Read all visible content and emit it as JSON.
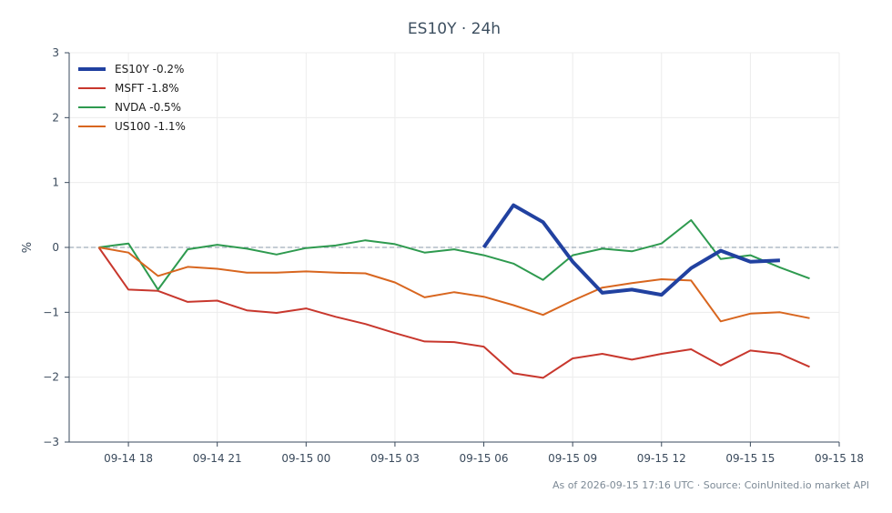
{
  "chart_data": {
    "type": "line",
    "title": "ES10Y · 24h",
    "xlabel": "",
    "ylabel": "%",
    "ylim": [
      -3,
      3
    ],
    "yticks": [
      -3,
      -2,
      -1,
      0,
      1,
      2,
      3
    ],
    "ytick_labels": [
      "−3",
      "−2",
      "−1",
      "0",
      "1",
      "2",
      "3"
    ],
    "xlim": [
      "09-14 16:00",
      "09-15 18:00"
    ],
    "xticks": [
      "09-14 18:00",
      "09-14 21:00",
      "09-15 00:00",
      "09-15 03:00",
      "09-15 06:00",
      "09-15 09:00",
      "09-15 12:00",
      "09-15 15:00",
      "09-15 18:00"
    ],
    "xtick_labels": [
      "09-14 18",
      "09-14 21",
      "09-15 00",
      "09-15 03",
      "09-15 06",
      "09-15 09",
      "09-15 12",
      "09-15 15",
      "09-15 18"
    ],
    "grid": true,
    "zero_line": true,
    "legend_position": "top-left",
    "series": [
      {
        "name": "ES10Y -0.2%",
        "color": "#2141a0",
        "width": "thick",
        "x": [
          "09-15 06:00",
          "09-15 07:00",
          "09-15 08:00",
          "09-15 09:00",
          "09-15 10:00",
          "09-15 11:00",
          "09-15 12:00",
          "09-15 13:00",
          "09-15 14:00",
          "09-15 15:00",
          "09-15 16:00"
        ],
        "values": [
          0.0,
          0.65,
          0.39,
          -0.22,
          -0.7,
          -0.65,
          -0.73,
          -0.32,
          -0.05,
          -0.22,
          -0.2
        ]
      },
      {
        "name": "MSFT -1.8%",
        "color": "#c8372d",
        "width": "normal",
        "x": [
          "09-14 17:00",
          "09-14 18:00",
          "09-14 19:00",
          "09-14 20:00",
          "09-14 21:00",
          "09-14 22:00",
          "09-14 23:00",
          "09-15 00:00",
          "09-15 01:00",
          "09-15 02:00",
          "09-15 03:00",
          "09-15 04:00",
          "09-15 05:00",
          "09-15 06:00",
          "09-15 07:00",
          "09-15 08:00",
          "09-15 09:00",
          "09-15 10:00",
          "09-15 11:00",
          "09-15 12:00",
          "09-15 13:00",
          "09-15 14:00",
          "09-15 15:00",
          "09-15 16:00",
          "09-15 17:00"
        ],
        "values": [
          0.0,
          -0.65,
          -0.67,
          -0.84,
          -0.82,
          -0.97,
          -1.01,
          -0.94,
          -1.07,
          -1.18,
          -1.32,
          -1.45,
          -1.46,
          -1.53,
          -1.94,
          -2.01,
          -1.71,
          -1.64,
          -1.73,
          -1.64,
          -1.57,
          -1.82,
          -1.59,
          -1.64,
          -1.84
        ]
      },
      {
        "name": "NVDA -0.5%",
        "color": "#2e9a4f",
        "width": "normal",
        "x": [
          "09-14 17:00",
          "09-14 18:00",
          "09-14 19:00",
          "09-14 20:00",
          "09-14 21:00",
          "09-14 22:00",
          "09-14 23:00",
          "09-15 00:00",
          "09-15 01:00",
          "09-15 02:00",
          "09-15 03:00",
          "09-15 04:00",
          "09-15 05:00",
          "09-15 06:00",
          "09-15 07:00",
          "09-15 08:00",
          "09-15 09:00",
          "09-15 10:00",
          "09-15 11:00",
          "09-15 12:00",
          "09-15 13:00",
          "09-15 14:00",
          "09-15 15:00",
          "09-15 16:00",
          "09-15 17:00"
        ],
        "values": [
          0.0,
          0.06,
          -0.65,
          -0.03,
          0.04,
          -0.02,
          -0.11,
          -0.01,
          0.03,
          0.11,
          0.05,
          -0.08,
          -0.03,
          -0.12,
          -0.25,
          -0.5,
          -0.12,
          -0.02,
          -0.06,
          0.06,
          0.42,
          -0.18,
          -0.12,
          -0.31,
          -0.48
        ]
      },
      {
        "name": "US100 -1.1%",
        "color": "#d8661f",
        "width": "normal",
        "x": [
          "09-14 17:00",
          "09-14 18:00",
          "09-14 19:00",
          "09-14 20:00",
          "09-14 21:00",
          "09-14 22:00",
          "09-14 23:00",
          "09-15 00:00",
          "09-15 01:00",
          "09-15 02:00",
          "09-15 03:00",
          "09-15 04:00",
          "09-15 05:00",
          "09-15 06:00",
          "09-15 07:00",
          "09-15 08:00",
          "09-15 09:00",
          "09-15 10:00",
          "09-15 11:00",
          "09-15 12:00",
          "09-15 13:00",
          "09-15 14:00",
          "09-15 15:00",
          "09-15 16:00",
          "09-15 17:00"
        ],
        "values": [
          0.0,
          -0.08,
          -0.44,
          -0.3,
          -0.33,
          -0.39,
          -0.39,
          -0.37,
          -0.39,
          -0.4,
          -0.54,
          -0.77,
          -0.69,
          -0.76,
          -0.89,
          -1.04,
          -0.82,
          -0.62,
          -0.55,
          -0.49,
          -0.51,
          -1.14,
          -1.02,
          -1.0,
          -1.09
        ]
      }
    ],
    "footer": "As of 2026-09-15 17:16 UTC · Source: CoinUnited.io market API"
  }
}
